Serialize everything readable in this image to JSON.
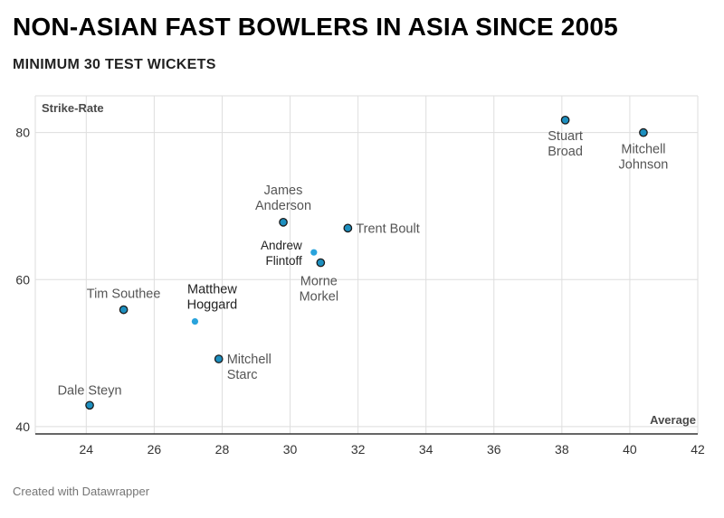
{
  "header": {
    "title": "NON-ASIAN FAST BOWLERS IN ASIA SINCE 2005",
    "subtitle": "MINIMUM 30 TEST WICKETS"
  },
  "footer": {
    "credit": "Created with Datawrapper"
  },
  "colors": {
    "point": "#1d8fbf",
    "point_highlight": "#29a3dc",
    "outline": "#1a1a1a",
    "grid": "#dedede"
  },
  "chart_data": {
    "type": "scatter",
    "xlabel": "Average",
    "ylabel": "Strike-Rate",
    "xlim": [
      22.5,
      42
    ],
    "ylim": [
      39,
      85
    ],
    "x_ticks": [
      24,
      26,
      28,
      30,
      32,
      34,
      36,
      38,
      40,
      42
    ],
    "y_ticks": [
      40,
      60,
      80
    ],
    "grid": true,
    "points": [
      {
        "name": "Stuart Broad",
        "x": 38.1,
        "y": 81.7,
        "outlined": true
      },
      {
        "name": "Mitchell Johnson",
        "x": 40.4,
        "y": 80.0,
        "outlined": true
      },
      {
        "name": "James Anderson",
        "x": 29.8,
        "y": 67.8,
        "outlined": true
      },
      {
        "name": "Trent Boult",
        "x": 31.7,
        "y": 67.0,
        "outlined": true
      },
      {
        "name": "Andrew Flintoff",
        "x": 30.7,
        "y": 63.7,
        "outlined": false
      },
      {
        "name": "Morne Morkel",
        "x": 30.9,
        "y": 62.3,
        "outlined": true
      },
      {
        "name": "Tim Southee",
        "x": 25.1,
        "y": 55.9,
        "outlined": true
      },
      {
        "name": "Matthew Hoggard",
        "x": 27.2,
        "y": 54.3,
        "outlined": false
      },
      {
        "name": "Mitchell Starc",
        "x": 27.9,
        "y": 49.2,
        "outlined": true
      },
      {
        "name": "Dale Steyn",
        "x": 24.1,
        "y": 42.9,
        "outlined": true
      }
    ]
  }
}
